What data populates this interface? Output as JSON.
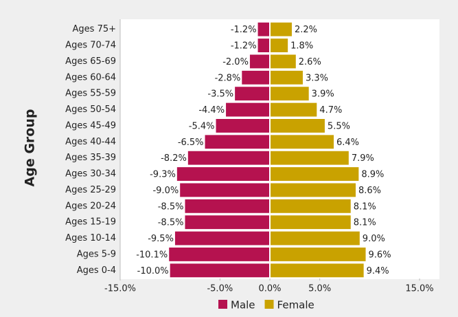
{
  "chart_data": {
    "type": "population_pyramid",
    "y_label": "Age Group",
    "categories": [
      "Ages 75+",
      "Ages 70-74",
      "Ages 65-69",
      "Ages 60-64",
      "Ages 55-59",
      "Ages 50-54",
      "Ages 45-49",
      "Ages 40-44",
      "Ages 35-39",
      "Ages 30-34",
      "Ages 25-29",
      "Ages 20-24",
      "Ages 15-19",
      "Ages 10-14",
      "Ages 5-9",
      "Ages 0-4"
    ],
    "series": [
      {
        "name": "Male",
        "color": "#b5124f",
        "values": [
          -1.2,
          -1.2,
          -2.0,
          -2.8,
          -3.5,
          -4.4,
          -5.4,
          -6.5,
          -8.2,
          -9.3,
          -9.0,
          -8.5,
          -8.5,
          -9.5,
          -10.1,
          -10.0
        ],
        "value_labels": [
          "-1.2%",
          "-1.2%",
          "-2.0%",
          "-2.8%",
          "-3.5%",
          "-4.4%",
          "-5.4%",
          "-6.5%",
          "-8.2%",
          "-9.3%",
          "-9.0%",
          "-8.5%",
          "-8.5%",
          "-9.5%",
          "-10.1%",
          "-10.0%"
        ]
      },
      {
        "name": "Female",
        "color": "#c9a200",
        "values": [
          2.2,
          1.8,
          2.6,
          3.3,
          3.9,
          4.7,
          5.5,
          6.4,
          7.9,
          8.9,
          8.6,
          8.1,
          8.1,
          9.0,
          9.6,
          9.4
        ],
        "value_labels": [
          "2.2%",
          "1.8%",
          "2.6%",
          "3.3%",
          "3.9%",
          "4.7%",
          "5.5%",
          "6.4%",
          "7.9%",
          "8.9%",
          "8.6%",
          "8.1%",
          "8.1%",
          "9.0%",
          "9.6%",
          "9.4%"
        ]
      }
    ],
    "xlim": [
      -15,
      15
    ],
    "xticks": [
      {
        "value": -15,
        "label": "-15.0%"
      },
      {
        "value": -5,
        "label": "-5.0%"
      },
      {
        "value": 0,
        "label": "0.0%"
      },
      {
        "value": 5,
        "label": "5.0%"
      },
      {
        "value": 15,
        "label": "15.0%"
      }
    ],
    "legend": "bottom"
  }
}
